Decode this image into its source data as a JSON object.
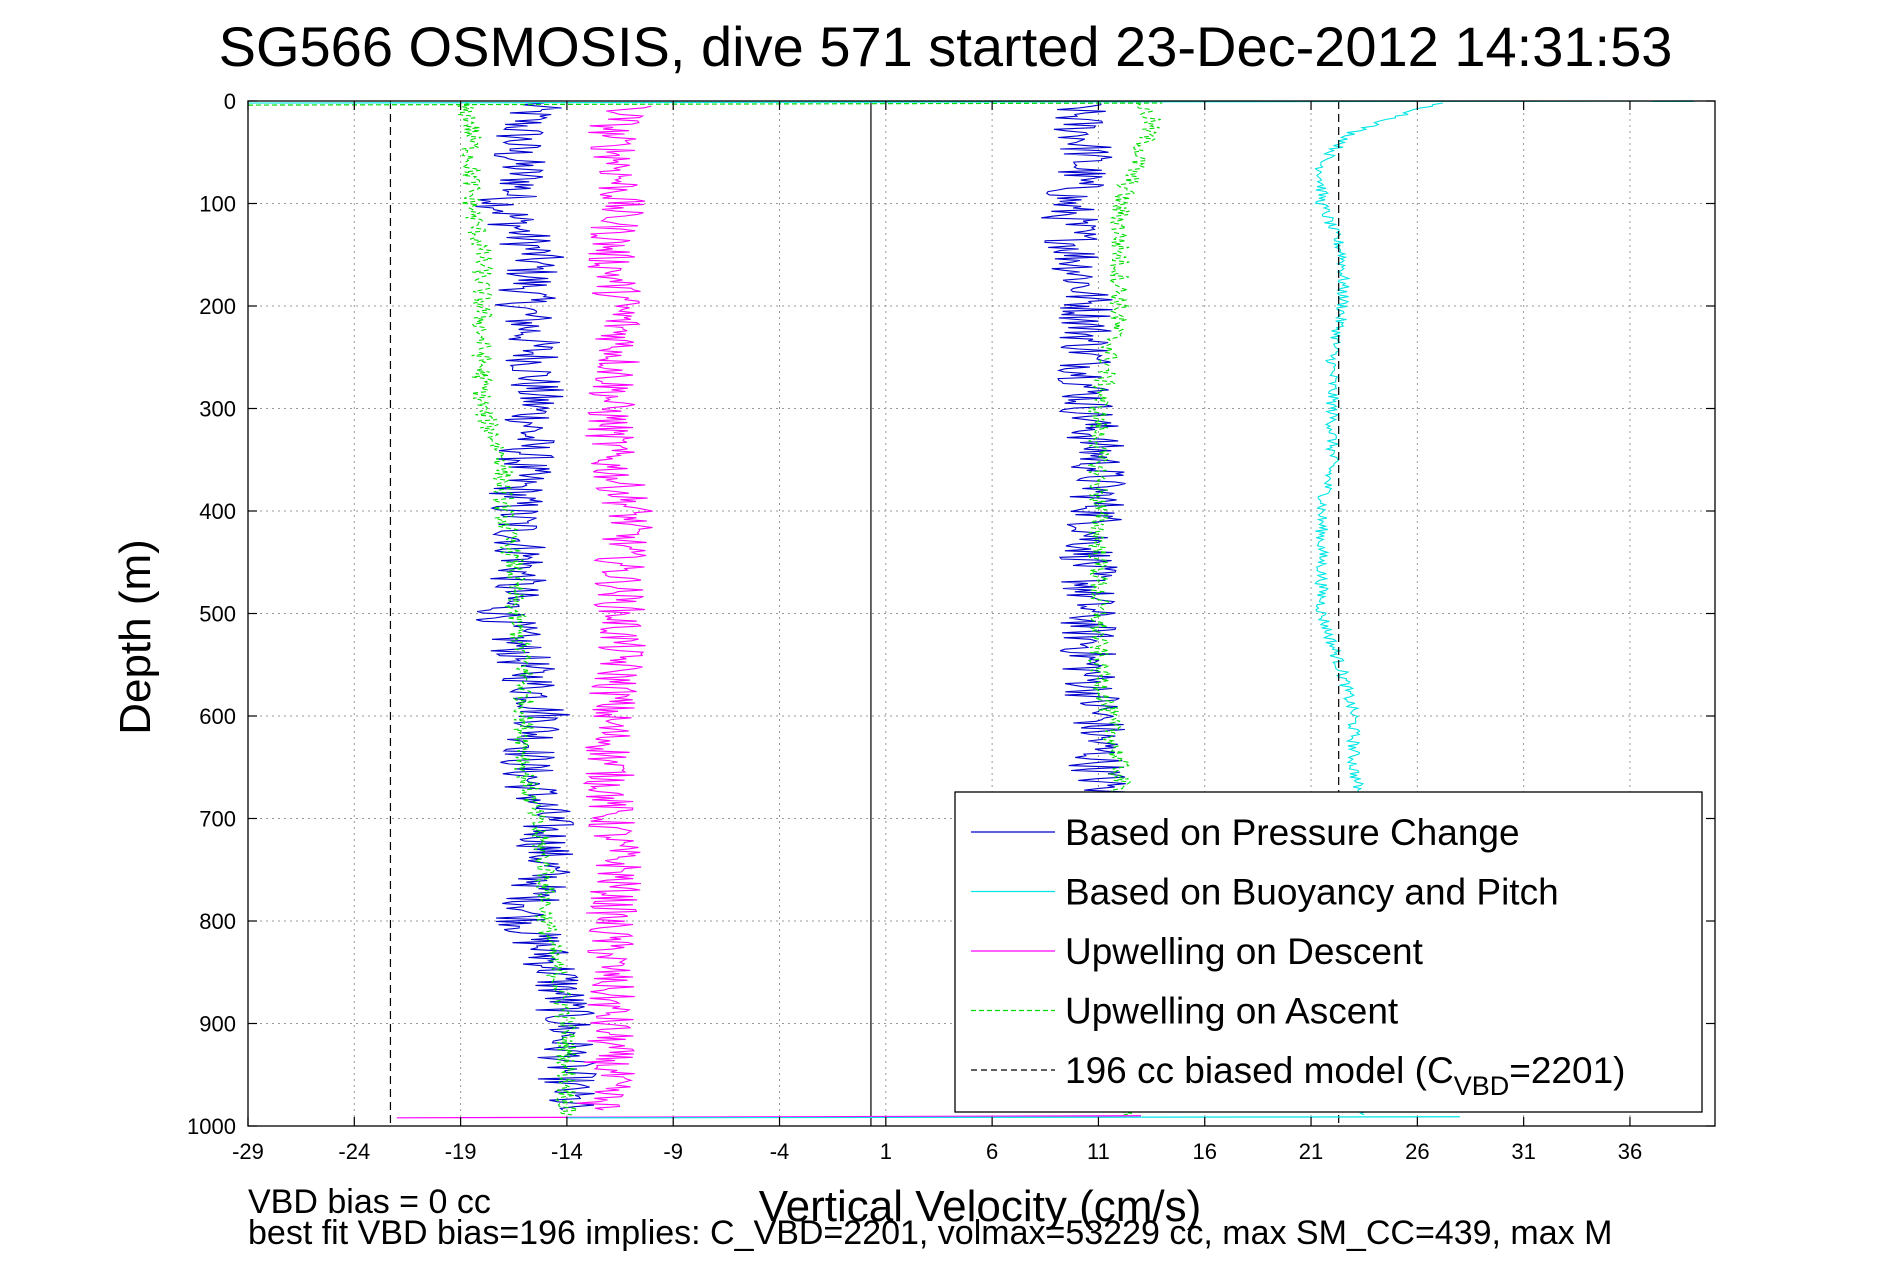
{
  "chart_data": {
    "type": "line",
    "title": "SG566 OSMOSIS, dive 571 started 23-Dec-2012 14:31:53",
    "xlabel": "Vertical Velocity (cm/s)",
    "ylabel": "Depth (m)",
    "xlim": [
      -29,
      40
    ],
    "ylim": [
      0,
      1000
    ],
    "y_reversed": true,
    "x_ticks": [
      -29,
      -24,
      -19,
      -14,
      -9,
      -4,
      1,
      6,
      11,
      16,
      21,
      26,
      31,
      36
    ],
    "y_ticks": [
      0,
      100,
      200,
      300,
      400,
      500,
      600,
      700,
      800,
      900,
      1000
    ],
    "grid": true,
    "legend_position": "bottom-right",
    "series": [
      {
        "name": "Based on Pressure Change",
        "color": "#0000cc",
        "style": "solid",
        "noise": 1.4,
        "depth": [
          2,
          20,
          50,
          80,
          100,
          150,
          200,
          250,
          300,
          350,
          400,
          450,
          500,
          550,
          600,
          650,
          700,
          750,
          800,
          850,
          900,
          950,
          985
        ],
        "descent": [
          -15.5,
          -16,
          -16.5,
          -16,
          -17,
          -15.5,
          -16,
          -15.5,
          -15.5,
          -16,
          -16.5,
          -16,
          -17,
          -16,
          -15,
          -16,
          -15,
          -15,
          -16,
          -14.5,
          -14,
          -14,
          -14
        ],
        "ascent": [
          10,
          10,
          10.5,
          10,
          9.5,
          10,
          10.5,
          10.5,
          10.5,
          11,
          11,
          10.5,
          10.5,
          10.5,
          11,
          11,
          11.5,
          11.5,
          11.5,
          12,
          12,
          12,
          12
        ]
      },
      {
        "name": "Based on Buoyancy and Pitch",
        "color": "#00e5e5",
        "style": "solid",
        "noise": 0.3,
        "depth": [
          2,
          30,
          60,
          100,
          150,
          200,
          250,
          300,
          350,
          400,
          450,
          500,
          560,
          600,
          650,
          700,
          750,
          800,
          850,
          900,
          950,
          990
        ],
        "values": [
          27,
          23,
          21.5,
          21.5,
          22.5,
          22.5,
          22,
          22,
          22,
          21.5,
          21.5,
          21.5,
          22.5,
          23,
          23,
          23.5,
          23.5,
          23.5,
          23.5,
          23.5,
          23.5,
          23.5
        ]
      },
      {
        "name": "Upwelling on Descent",
        "color": "#ff00ff",
        "style": "solid",
        "noise": 1.2,
        "depth": [
          5,
          30,
          60,
          100,
          150,
          200,
          250,
          300,
          350,
          400,
          450,
          500,
          550,
          600,
          650,
          700,
          750,
          800,
          850,
          900,
          950,
          985
        ],
        "values": [
          -11,
          -12,
          -11.5,
          -11.5,
          -12,
          -11.5,
          -11.5,
          -12,
          -12,
          -11,
          -11.5,
          -11.5,
          -11.5,
          -12,
          -12,
          -12,
          -11.5,
          -12,
          -12,
          -12,
          -12,
          -12.5
        ]
      },
      {
        "name": "Upwelling on Ascent",
        "color": "#00dd00",
        "style": "dashed",
        "noise": 0.5,
        "depth": [
          2,
          20,
          50,
          100,
          150,
          200,
          250,
          300,
          350,
          400,
          450,
          500,
          550,
          600,
          650,
          700,
          750,
          800,
          850,
          900,
          950,
          990
        ],
        "descent": [
          -19,
          -18.5,
          -18.5,
          -18.5,
          -18,
          -18,
          -18,
          -18,
          -17,
          -17,
          -16.5,
          -16.5,
          -16,
          -16,
          -16,
          -15.5,
          -15,
          -15,
          -14.5,
          -14,
          -14,
          -14
        ],
        "ascent": [
          13,
          13.5,
          13,
          12,
          12,
          12,
          11.5,
          11,
          11,
          11,
          11,
          11,
          11,
          11.5,
          12,
          12,
          12,
          12.5,
          12.5,
          12.5,
          12.5,
          12.5
        ]
      },
      {
        "name": "196 cc biased model (C",
        "subscript": "VBD",
        "suffix": "=2201)",
        "color": "#000000",
        "style": "dashed",
        "lines_x": [
          -22.3,
          22.3
        ]
      }
    ],
    "reference_line_x": 0.3,
    "annotations": {
      "line1": "VBD bias = 0 cc",
      "line2": "best fit VBD bias=196 implies: C_VBD=2201, volmax=53229 cc, max SM_CC=439, max M"
    }
  }
}
